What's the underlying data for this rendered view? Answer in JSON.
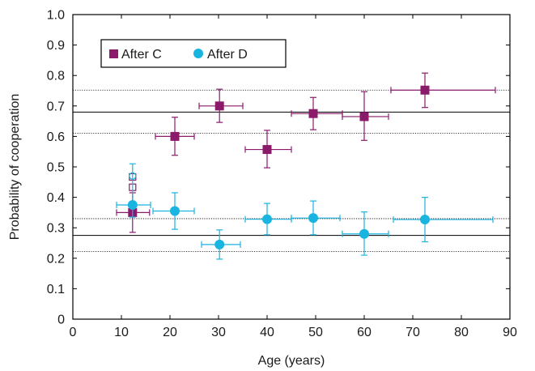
{
  "chart_data": {
    "type": "scatter",
    "title": "",
    "xlabel": "Age (years)",
    "ylabel": "Probability of cooperation",
    "xlim": [
      0,
      90
    ],
    "ylim": [
      0,
      1.0
    ],
    "x_ticks": [
      "0",
      "10",
      "20",
      "30",
      "40",
      "50",
      "60",
      "70",
      "80",
      "90"
    ],
    "y_ticks": [
      "0",
      "0.1",
      "0.2",
      "0.3",
      "0.4",
      "0.5",
      "0.6",
      "0.7",
      "0.8",
      "0.9",
      "1.0"
    ],
    "grid": false,
    "legend_position": "top-left",
    "series": [
      {
        "name": "After C",
        "marker": "square",
        "color": "#8b1a6b",
        "points": [
          {
            "x": 12.3,
            "y": 0.35,
            "xerr": [
              9.0,
              15.8
            ],
            "yerr": [
              0.285,
              0.415
            ]
          },
          {
            "x": 21.0,
            "y": 0.6,
            "xerr": [
              17.0,
              25.0
            ],
            "yerr": [
              0.538,
              0.663
            ]
          },
          {
            "x": 30.2,
            "y": 0.7,
            "xerr": [
              26.0,
              35.0
            ],
            "yerr": [
              0.646,
              0.755
            ]
          },
          {
            "x": 40.0,
            "y": 0.557,
            "xerr": [
              35.5,
              45.0
            ],
            "yerr": [
              0.497,
              0.62
            ]
          },
          {
            "x": 49.5,
            "y": 0.675,
            "xerr": [
              45.0,
              55.5
            ],
            "yerr": [
              0.622,
              0.728
            ]
          },
          {
            "x": 60.0,
            "y": 0.665,
            "xerr": [
              55.5,
              65.0
            ],
            "yerr": [
              0.587,
              0.747
            ]
          },
          {
            "x": 72.5,
            "y": 0.752,
            "xerr": [
              65.5,
              87.0
            ],
            "yerr": [
              0.695,
              0.808
            ]
          }
        ],
        "open_points": [
          {
            "x": 12.3,
            "y": 0.467
          },
          {
            "x": 12.3,
            "y": 0.433
          }
        ]
      },
      {
        "name": "After D",
        "marker": "circle",
        "color": "#1ab4e0",
        "points": [
          {
            "x": 12.3,
            "y": 0.375,
            "xerr": [
              9.0,
              16.0
            ],
            "yerr": [
              0.335,
              0.51
            ]
          },
          {
            "x": 21.0,
            "y": 0.355,
            "xerr": [
              16.5,
              25.0
            ],
            "yerr": [
              0.295,
              0.415
            ]
          },
          {
            "x": 30.2,
            "y": 0.245,
            "xerr": [
              26.5,
              34.5
            ],
            "yerr": [
              0.197,
              0.293
            ]
          },
          {
            "x": 40.0,
            "y": 0.328,
            "xerr": [
              35.5,
              45.0
            ],
            "yerr": [
              0.277,
              0.38
            ]
          },
          {
            "x": 49.5,
            "y": 0.332,
            "xerr": [
              45.0,
              55.0
            ],
            "yerr": [
              0.277,
              0.388
            ]
          },
          {
            "x": 60.0,
            "y": 0.28,
            "xerr": [
              55.5,
              65.0
            ],
            "yerr": [
              0.21,
              0.352
            ]
          },
          {
            "x": 72.5,
            "y": 0.327,
            "xerr": [
              66.0,
              86.5
            ],
            "yerr": [
              0.254,
              0.4
            ]
          }
        ],
        "open_points": [
          {
            "x": 12.3,
            "y": 0.47
          }
        ]
      }
    ],
    "reference_lines": [
      {
        "y": 0.752,
        "style": "dotted"
      },
      {
        "y": 0.68,
        "style": "solid"
      },
      {
        "y": 0.61,
        "style": "dotted"
      },
      {
        "y": 0.33,
        "style": "dotted"
      },
      {
        "y": 0.275,
        "style": "solid"
      },
      {
        "y": 0.222,
        "style": "dotted"
      }
    ]
  }
}
